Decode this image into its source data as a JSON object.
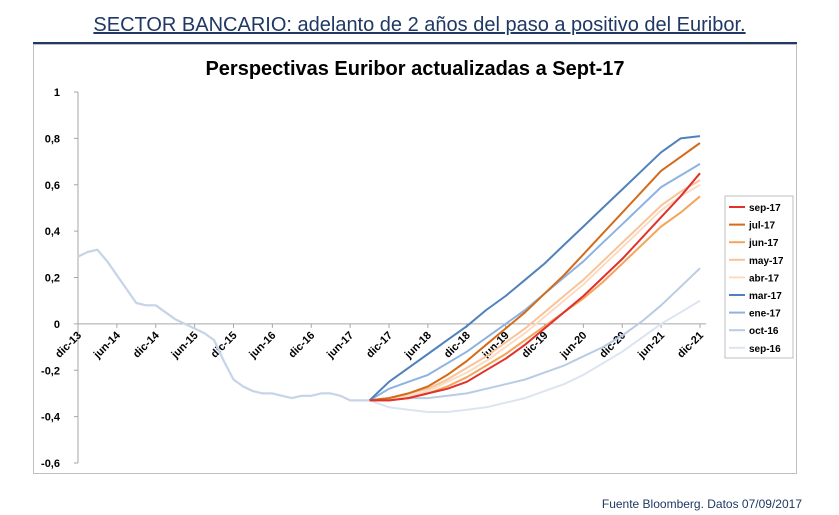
{
  "header": {
    "title": "SECTOR BANCARIO: adelanto de 2 años del paso a positivo del Euribor."
  },
  "footer": {
    "source": "Fuente Bloomberg. Datos 07/09/2017"
  },
  "chart_data": {
    "type": "line",
    "title": "Perspectivas Euribor actualizadas a Sept-17",
    "xlabel": "",
    "ylabel": "",
    "x_tick_labels": [
      "dic-13",
      "jun-14",
      "dic-14",
      "jun-15",
      "dic-15",
      "jun-16",
      "dic-16",
      "jun-17",
      "dic-17",
      "jun-18",
      "dic-18",
      "jun-19",
      "dic-19",
      "jun-20",
      "dic-20",
      "jun-21",
      "dic-21"
    ],
    "y_ticks": [
      "1",
      "0,8",
      "0,6",
      "0,4",
      "0,2",
      "0",
      "-0,2",
      "-0,4",
      "-0,6"
    ],
    "ylim": [
      -0.6,
      1.0
    ],
    "grid": false,
    "legend_position": "right",
    "historical": {
      "x": [
        0,
        0.25,
        0.5,
        0.75,
        1,
        1.25,
        1.5,
        1.75,
        2,
        2.25,
        2.5,
        2.75,
        3,
        3.25,
        3.5,
        3.75,
        4,
        4.25,
        4.5,
        4.75,
        5,
        5.25,
        5.5,
        5.75,
        6,
        6.25,
        6.5,
        6.75,
        7,
        7.25,
        7.5
      ],
      "values": [
        0.29,
        0.31,
        0.32,
        0.27,
        0.21,
        0.15,
        0.09,
        0.08,
        0.08,
        0.05,
        0.02,
        0.0,
        -0.02,
        -0.04,
        -0.07,
        -0.16,
        -0.24,
        -0.27,
        -0.29,
        -0.3,
        -0.3,
        -0.31,
        -0.32,
        -0.31,
        -0.31,
        -0.3,
        -0.3,
        -0.31,
        -0.33,
        -0.33,
        -0.33
      ]
    },
    "series": [
      {
        "name": "sep-17",
        "color": "#e0312d",
        "x": [
          7.5,
          8,
          8.5,
          9,
          9.5,
          10,
          10.5,
          11,
          11.5,
          12,
          12.5,
          13,
          13.5,
          14,
          14.5,
          15,
          15.5,
          16
        ],
        "values": [
          -0.33,
          -0.33,
          -0.32,
          -0.3,
          -0.28,
          -0.25,
          -0.2,
          -0.15,
          -0.09,
          -0.02,
          0.05,
          0.12,
          0.2,
          0.28,
          0.37,
          0.46,
          0.55,
          0.65
        ]
      },
      {
        "name": "jul-17",
        "color": "#d36b1a",
        "x": [
          7.5,
          8,
          8.5,
          9,
          9.5,
          10,
          10.5,
          11,
          11.5,
          12,
          12.5,
          13,
          13.5,
          14,
          14.5,
          15,
          15.5,
          16
        ],
        "values": [
          -0.33,
          -0.32,
          -0.3,
          -0.27,
          -0.22,
          -0.16,
          -0.09,
          -0.02,
          0.05,
          0.13,
          0.21,
          0.3,
          0.39,
          0.48,
          0.57,
          0.66,
          0.72,
          0.78
        ]
      },
      {
        "name": "jun-17",
        "color": "#f4a55c",
        "x": [
          7.5,
          8,
          8.5,
          9,
          9.5,
          10,
          10.5,
          11,
          11.5,
          12,
          12.5,
          13,
          13.5,
          14,
          14.5,
          15,
          15.5,
          16
        ],
        "values": [
          -0.33,
          -0.33,
          -0.32,
          -0.3,
          -0.27,
          -0.23,
          -0.18,
          -0.13,
          -0.07,
          -0.01,
          0.05,
          0.11,
          0.18,
          0.26,
          0.34,
          0.42,
          0.48,
          0.55
        ]
      },
      {
        "name": "may-17",
        "color": "#f8c49a",
        "x": [
          7.5,
          8,
          8.5,
          9,
          9.5,
          10,
          10.5,
          11,
          11.5,
          12,
          12.5,
          13,
          13.5,
          14,
          14.5,
          15,
          15.5,
          16
        ],
        "values": [
          -0.33,
          -0.32,
          -0.3,
          -0.28,
          -0.24,
          -0.19,
          -0.14,
          -0.08,
          -0.02,
          0.05,
          0.12,
          0.19,
          0.27,
          0.35,
          0.43,
          0.51,
          0.57,
          0.62
        ]
      },
      {
        "name": "abr-17",
        "color": "#fbdcc2",
        "x": [
          7.5,
          8,
          8.5,
          9,
          9.5,
          10,
          10.5,
          11,
          11.5,
          12,
          12.5,
          13,
          13.5,
          14,
          14.5,
          15,
          15.5,
          16
        ],
        "values": [
          -0.33,
          -0.32,
          -0.31,
          -0.29,
          -0.25,
          -0.21,
          -0.16,
          -0.1,
          -0.04,
          0.03,
          0.1,
          0.17,
          0.25,
          0.33,
          0.41,
          0.49,
          0.55,
          0.6
        ]
      },
      {
        "name": "mar-17",
        "color": "#4f81bd",
        "x": [
          7.5,
          8,
          8.5,
          9,
          9.5,
          10,
          10.5,
          11,
          11.5,
          12,
          12.5,
          13,
          13.5,
          14,
          14.5,
          15,
          15.5,
          16
        ],
        "values": [
          -0.33,
          -0.25,
          -0.19,
          -0.13,
          -0.07,
          -0.01,
          0.06,
          0.12,
          0.19,
          0.26,
          0.34,
          0.42,
          0.5,
          0.58,
          0.66,
          0.74,
          0.8,
          0.81
        ]
      },
      {
        "name": "ene-17",
        "color": "#8db3e2",
        "x": [
          7.5,
          8,
          8.5,
          9,
          9.5,
          10,
          10.5,
          11,
          11.5,
          12,
          12.5,
          13,
          13.5,
          14,
          14.5,
          15,
          15.5,
          16
        ],
        "values": [
          -0.33,
          -0.28,
          -0.25,
          -0.22,
          -0.17,
          -0.12,
          -0.06,
          0.0,
          0.06,
          0.13,
          0.2,
          0.27,
          0.35,
          0.43,
          0.51,
          0.59,
          0.64,
          0.69
        ]
      },
      {
        "name": "oct-16",
        "color": "#b8cce4",
        "x": [
          7.5,
          8,
          8.5,
          9,
          9.5,
          10,
          10.5,
          11,
          11.5,
          12,
          12.5,
          13,
          13.5,
          14,
          14.5,
          15,
          15.5,
          16
        ],
        "values": [
          -0.33,
          -0.33,
          -0.32,
          -0.32,
          -0.31,
          -0.3,
          -0.28,
          -0.26,
          -0.24,
          -0.21,
          -0.18,
          -0.14,
          -0.1,
          -0.05,
          0.01,
          0.08,
          0.16,
          0.24
        ]
      },
      {
        "name": "sep-16",
        "color": "#dbe5f1",
        "x": [
          7.5,
          8,
          8.5,
          9,
          9.5,
          10,
          10.5,
          11,
          11.5,
          12,
          12.5,
          13,
          13.5,
          14,
          14.5,
          15,
          15.5,
          16
        ],
        "values": [
          -0.33,
          -0.36,
          -0.37,
          -0.38,
          -0.38,
          -0.37,
          -0.36,
          -0.34,
          -0.32,
          -0.29,
          -0.26,
          -0.22,
          -0.17,
          -0.12,
          -0.06,
          0.0,
          0.05,
          0.1
        ]
      }
    ]
  }
}
